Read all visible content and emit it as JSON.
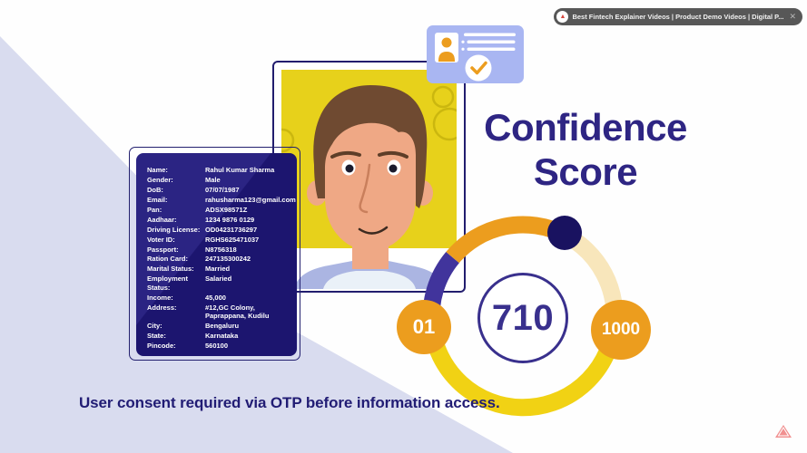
{
  "browser_pill": {
    "label": "Best Fintech Explainer Videos | Product Demo Videos | Digital P...",
    "close_icon": "✕"
  },
  "title": {
    "line1": "Confidence",
    "line2": "Score"
  },
  "gauge": {
    "score": "710",
    "min_label": "01",
    "max_label": "1000",
    "colors": {
      "purple": "#41349c",
      "orange": "#ec9d1e",
      "cream": "#f8e6bb",
      "yellow": "#f1d214",
      "marker_navy": "#191260",
      "badge_orange": "#ec9d1e",
      "score_text": "#39308d"
    }
  },
  "identity_card": {
    "fields": [
      {
        "label": "Name:",
        "value": "Rahul Kumar Sharma"
      },
      {
        "label": "Gender:",
        "value": "Male"
      },
      {
        "label": "DoB:",
        "value": "07/07/1987"
      },
      {
        "label": "Email:",
        "value": "rahusharma123@gmail.com"
      },
      {
        "label": "Pan:",
        "value": "ADSX98571Z"
      },
      {
        "label": "Aadhaar:",
        "value": "1234 9876 0129"
      },
      {
        "label": "Driving License:",
        "value": "OD04231736297"
      },
      {
        "label": "Voter ID:",
        "value": "RGHS625471037"
      },
      {
        "label": "Passport:",
        "value": "N8756318"
      },
      {
        "label": "Ration Card:",
        "value": "247135300242"
      },
      {
        "label": "Marital Status:",
        "value": "Married"
      },
      {
        "label": "Employment Status:",
        "value": "Salaried"
      },
      {
        "label": "Income:",
        "value": "45,000"
      },
      {
        "label": "Address:",
        "value": "#12,GC Colony, Paprappana, Kudilu"
      },
      {
        "label": "City:",
        "value": "Bengaluru"
      },
      {
        "label": "State:",
        "value": "Karnataka"
      },
      {
        "label": "Pincode:",
        "value": "560100"
      }
    ],
    "colors": {
      "card_navy": "#1c156f",
      "sheen": "#2b2483"
    }
  },
  "footer": {
    "note": "User consent required via OTP before information access."
  },
  "icons": {
    "pill_logo": "▲",
    "person_icon": "id-photo-person",
    "check_icon": "orange-checkmark",
    "watermark": "pink-mountain-logo"
  },
  "photo": {
    "background_yellow": "#e7d11b",
    "shirt": "#abb5e2",
    "hair": "#6f4a31",
    "skin": "#efa885"
  }
}
